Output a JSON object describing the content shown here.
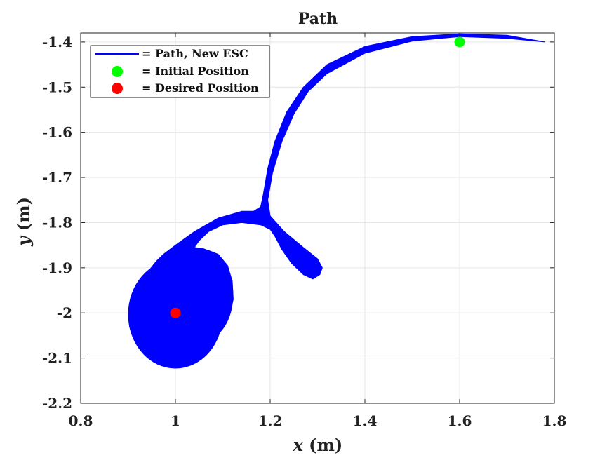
{
  "chart_data": {
    "type": "line",
    "title": "Path",
    "xlabel_var": "x",
    "xlabel_unit": "(m)",
    "ylabel_var": "y",
    "ylabel_unit": "(m)",
    "xlim": [
      0.8,
      1.8
    ],
    "ylim": [
      -2.2,
      -1.38
    ],
    "x_ticks": [
      0.8,
      1.0,
      1.2,
      1.4,
      1.6,
      1.8
    ],
    "x_tick_labels": [
      "0.8",
      "1",
      "1.2",
      "1.4",
      "1.6",
      "1.8"
    ],
    "y_ticks": [
      -2.2,
      -2.1,
      -2.0,
      -1.9,
      -1.8,
      -1.7,
      -1.6,
      -1.5,
      -1.4
    ],
    "y_tick_labels": [
      "-2.2",
      "-2.1",
      "-2",
      "-1.9",
      "-1.8",
      "-1.7",
      "-1.6",
      "-1.5",
      "-1.4"
    ],
    "grid": true,
    "legend_position": "top-left",
    "series": [
      {
        "name": "= Path, New ESC",
        "color": "#0000ff",
        "marker": "line",
        "outline": [
          [
            1.78,
            -1.4
          ],
          [
            1.7,
            -1.392
          ],
          [
            1.6,
            -1.388
          ],
          [
            1.5,
            -1.398
          ],
          [
            1.4,
            -1.425
          ],
          [
            1.32,
            -1.47
          ],
          [
            1.28,
            -1.51
          ],
          [
            1.25,
            -1.56
          ],
          [
            1.225,
            -1.62
          ],
          [
            1.205,
            -1.69
          ],
          [
            1.195,
            -1.75
          ],
          [
            1.2,
            -1.785
          ],
          [
            1.23,
            -1.82
          ],
          [
            1.27,
            -1.855
          ],
          [
            1.3,
            -1.88
          ],
          [
            1.31,
            -1.9
          ],
          [
            1.305,
            -1.915
          ],
          [
            1.29,
            -1.925
          ],
          [
            1.27,
            -1.915
          ],
          [
            1.245,
            -1.89
          ],
          [
            1.225,
            -1.86
          ],
          [
            1.21,
            -1.83
          ],
          [
            1.2,
            -1.815
          ],
          [
            1.18,
            -1.805
          ],
          [
            1.14,
            -1.8
          ],
          [
            1.1,
            -1.805
          ],
          [
            1.07,
            -1.82
          ],
          [
            1.05,
            -1.84
          ],
          [
            1.04,
            -1.855
          ],
          [
            1.06,
            -1.858
          ],
          [
            1.09,
            -1.87
          ],
          [
            1.11,
            -1.895
          ],
          [
            1.12,
            -1.93
          ],
          [
            1.122,
            -1.97
          ],
          [
            1.115,
            -2.0
          ],
          [
            1.1,
            -2.02
          ],
          [
            1.08,
            -2.03
          ],
          [
            1.06,
            -2.025
          ],
          [
            1.04,
            -2.06
          ],
          [
            1.02,
            -2.09
          ],
          [
            1.0,
            -2.11
          ],
          [
            0.97,
            -2.11
          ],
          [
            0.94,
            -2.095
          ],
          [
            0.915,
            -2.065
          ],
          [
            0.903,
            -2.03
          ],
          [
            0.902,
            -1.995
          ],
          [
            0.91,
            -1.96
          ],
          [
            0.925,
            -1.93
          ],
          [
            0.945,
            -1.905
          ],
          [
            0.96,
            -1.885
          ],
          [
            0.975,
            -1.87
          ],
          [
            1.0,
            -1.85
          ],
          [
            1.04,
            -1.82
          ],
          [
            1.09,
            -1.79
          ],
          [
            1.14,
            -1.775
          ],
          [
            1.165,
            -1.775
          ],
          [
            1.18,
            -1.765
          ],
          [
            1.185,
            -1.74
          ],
          [
            1.195,
            -1.68
          ],
          [
            1.21,
            -1.62
          ],
          [
            1.235,
            -1.555
          ],
          [
            1.27,
            -1.5
          ],
          [
            1.32,
            -1.45
          ],
          [
            1.4,
            -1.41
          ],
          [
            1.5,
            -1.388
          ],
          [
            1.6,
            -1.382
          ],
          [
            1.7,
            -1.385
          ],
          [
            1.78,
            -1.4
          ]
        ]
      },
      {
        "name": "= Initial Position",
        "color": "#00ff00",
        "marker": "dot",
        "points": [
          [
            1.6,
            -1.4
          ]
        ]
      },
      {
        "name": "= Desired Position",
        "color": "#ff0000",
        "marker": "dot",
        "points": [
          [
            1.0,
            -2.0
          ]
        ]
      }
    ]
  }
}
